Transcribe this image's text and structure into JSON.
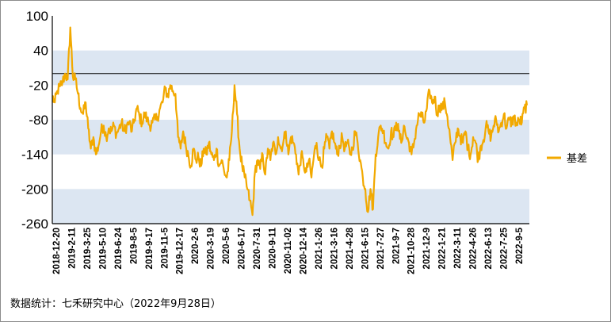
{
  "source_text": "数据统计：七禾研究中心（2022年9月28日）",
  "chart_data": {
    "type": "line",
    "title": "",
    "xlabel": "",
    "ylabel": "",
    "ylim": [
      -260,
      100
    ],
    "yticks": [
      100,
      40,
      -20,
      -80,
      -140,
      -200,
      -260
    ],
    "reference_line": 0,
    "bands": [
      [
        -20,
        40
      ],
      [
        -140,
        -80
      ],
      [
        -260,
        -200
      ]
    ],
    "grid": false,
    "legend_position": "right",
    "series_color": "#F2A900",
    "band_color": "#DCE6F2",
    "x_ticks": [
      "2018-12-20",
      "2019-2-11",
      "2019-3-25",
      "2019-5-10",
      "2019-6-24",
      "2019-8-5",
      "2019-9-17",
      "2019-11-5",
      "2019-12-17",
      "2020-2-6",
      "2020-3-19",
      "2020-5-6",
      "2020-6-17",
      "2020-7-31",
      "2020-9-11",
      "2020-11-02",
      "2020-12-14",
      "2021-1-26",
      "2021-3-16",
      "2021-4-28",
      "2021-6-15",
      "2021-7-27",
      "2021-9-7",
      "2021-10-28",
      "2021-12-9",
      "2022-1-21",
      "2022-3-11",
      "2022-4-26",
      "2022-6-13",
      "2022-7-25",
      "2022-9-5"
    ],
    "series": [
      {
        "name": "基差",
        "x_start": "2018-12-20",
        "x_end": "2022-9-28",
        "anchors": [
          [
            0,
            -40
          ],
          [
            1,
            -50
          ],
          [
            2,
            -30
          ],
          [
            3,
            -22
          ],
          [
            4,
            -15
          ],
          [
            5,
            0
          ],
          [
            6,
            -10
          ],
          [
            7,
            80
          ],
          [
            8,
            -5
          ],
          [
            9,
            -10
          ],
          [
            10,
            -35
          ],
          [
            11,
            -60
          ],
          [
            12,
            -70
          ],
          [
            13,
            -50
          ],
          [
            14,
            -95
          ],
          [
            15,
            -130
          ],
          [
            16,
            -110
          ],
          [
            17,
            -140
          ],
          [
            18,
            -125
          ],
          [
            19,
            -100
          ],
          [
            20,
            -90
          ],
          [
            21,
            -110
          ],
          [
            22,
            -95
          ],
          [
            23,
            -100
          ],
          [
            24,
            -90
          ],
          [
            25,
            -105
          ],
          [
            26,
            -95
          ],
          [
            27,
            -85
          ],
          [
            28,
            -100
          ],
          [
            29,
            -90
          ],
          [
            30,
            -85
          ],
          [
            31,
            -100
          ],
          [
            32,
            -80
          ],
          [
            33,
            -60
          ],
          [
            34,
            -75
          ],
          [
            35,
            -85
          ],
          [
            36,
            -70
          ],
          [
            37,
            -80
          ],
          [
            38,
            -90
          ],
          [
            39,
            -85
          ],
          [
            40,
            -80
          ],
          [
            41,
            -75
          ],
          [
            42,
            -60
          ],
          [
            43,
            -50
          ],
          [
            44,
            -25
          ],
          [
            45,
            -40
          ],
          [
            46,
            -20
          ],
          [
            47,
            -30
          ],
          [
            48,
            -35
          ],
          [
            49,
            -110
          ],
          [
            50,
            -130
          ],
          [
            51,
            -100
          ],
          [
            52,
            -125
          ],
          [
            53,
            -140
          ],
          [
            54,
            -160
          ],
          [
            55,
            -130
          ],
          [
            56,
            -150
          ],
          [
            57,
            -145
          ],
          [
            58,
            -160
          ],
          [
            59,
            -130
          ],
          [
            60,
            -140
          ],
          [
            61,
            -120
          ],
          [
            62,
            -140
          ],
          [
            63,
            -150
          ],
          [
            64,
            -130
          ],
          [
            65,
            -160
          ],
          [
            66,
            -150
          ],
          [
            67,
            -170
          ],
          [
            68,
            -180
          ],
          [
            69,
            -150
          ],
          [
            70,
            -100
          ],
          [
            71,
            -20
          ],
          [
            72,
            -70
          ],
          [
            73,
            -130
          ],
          [
            74,
            -160
          ],
          [
            75,
            -180
          ],
          [
            76,
            -200
          ],
          [
            77,
            -220
          ],
          [
            78,
            -245
          ],
          [
            79,
            -170
          ],
          [
            80,
            -150
          ],
          [
            81,
            -165
          ],
          [
            82,
            -140
          ],
          [
            83,
            -175
          ],
          [
            84,
            -130
          ],
          [
            85,
            -150
          ],
          [
            86,
            -120
          ],
          [
            87,
            -140
          ],
          [
            88,
            -110
          ],
          [
            89,
            -130
          ],
          [
            90,
            -120
          ],
          [
            91,
            -100
          ],
          [
            92,
            -140
          ],
          [
            93,
            -110
          ],
          [
            94,
            -120
          ],
          [
            95,
            -140
          ],
          [
            96,
            -175
          ],
          [
            97,
            -140
          ],
          [
            98,
            -160
          ],
          [
            99,
            -170
          ],
          [
            100,
            -150
          ],
          [
            101,
            -180
          ],
          [
            102,
            -140
          ],
          [
            103,
            -120
          ],
          [
            104,
            -150
          ],
          [
            105,
            -160
          ],
          [
            106,
            -130
          ],
          [
            107,
            -110
          ],
          [
            108,
            -130
          ],
          [
            109,
            -100
          ],
          [
            110,
            -120
          ],
          [
            111,
            -140
          ],
          [
            112,
            -125
          ],
          [
            113,
            -110
          ],
          [
            114,
            -130
          ],
          [
            115,
            -120
          ],
          [
            116,
            -140
          ],
          [
            117,
            -130
          ],
          [
            118,
            -100
          ],
          [
            119,
            -120
          ],
          [
            120,
            -150
          ],
          [
            121,
            -180
          ],
          [
            122,
            -200
          ],
          [
            123,
            -240
          ],
          [
            124,
            -200
          ],
          [
            125,
            -235
          ],
          [
            126,
            -140
          ],
          [
            127,
            -110
          ],
          [
            128,
            -90
          ],
          [
            129,
            -100
          ],
          [
            130,
            -120
          ],
          [
            131,
            -130
          ],
          [
            132,
            -100
          ],
          [
            133,
            -110
          ],
          [
            134,
            -85
          ],
          [
            135,
            -100
          ],
          [
            136,
            -120
          ],
          [
            137,
            -90
          ],
          [
            138,
            -110
          ],
          [
            139,
            -120
          ],
          [
            140,
            -140
          ],
          [
            141,
            -120
          ],
          [
            142,
            -90
          ],
          [
            143,
            -70
          ],
          [
            144,
            -75
          ],
          [
            145,
            -85
          ],
          [
            146,
            -60
          ],
          [
            147,
            -30
          ],
          [
            148,
            -50
          ],
          [
            149,
            -40
          ],
          [
            150,
            -70
          ],
          [
            151,
            -55
          ],
          [
            152,
            -60
          ],
          [
            153,
            -50
          ],
          [
            154,
            -75
          ],
          [
            155,
            -110
          ],
          [
            156,
            -150
          ],
          [
            157,
            -120
          ],
          [
            158,
            -95
          ],
          [
            159,
            -110
          ],
          [
            160,
            -120
          ],
          [
            161,
            -100
          ],
          [
            162,
            -130
          ],
          [
            163,
            -140
          ],
          [
            164,
            -110
          ],
          [
            165,
            -120
          ],
          [
            166,
            -150
          ],
          [
            167,
            -125
          ],
          [
            168,
            -115
          ],
          [
            169,
            -90
          ],
          [
            170,
            -100
          ],
          [
            171,
            -110
          ],
          [
            172,
            -90
          ],
          [
            173,
            -80
          ],
          [
            174,
            -100
          ],
          [
            175,
            -85
          ],
          [
            176,
            -70
          ],
          [
            177,
            -95
          ],
          [
            178,
            -80
          ],
          [
            179,
            -85
          ],
          [
            180,
            -75
          ],
          [
            181,
            -90
          ],
          [
            182,
            -80
          ],
          [
            183,
            -85
          ],
          [
            184,
            -60
          ],
          [
            185,
            -55
          ]
        ]
      }
    ]
  }
}
